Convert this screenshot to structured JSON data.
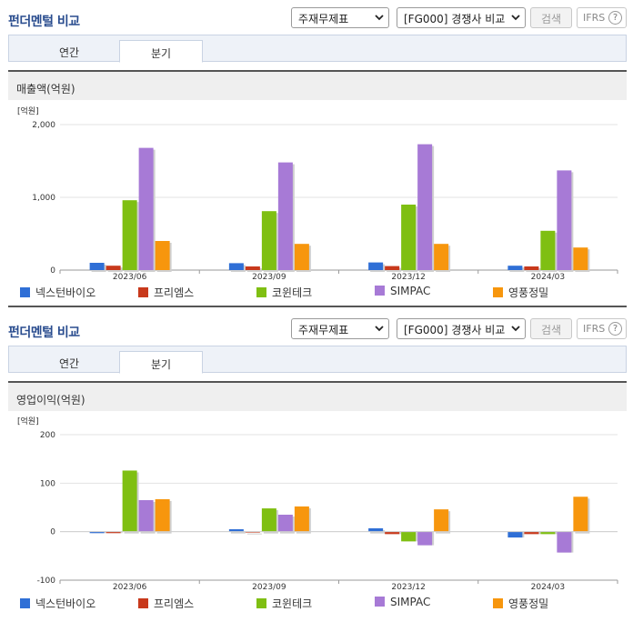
{
  "panels": [
    {
      "title": "펀더멘털 비교",
      "statement_select": "주재무제표",
      "compare_select": "[FG000] 경쟁사 비교",
      "search_button": "검색",
      "ifrs_label": "IFRS",
      "help_label": "?",
      "tabs": [
        "연간",
        "분기"
      ],
      "active_tab": 1,
      "section_title": "매출액(억원)"
    },
    {
      "title": "펀더멘털 비교",
      "statement_select": "주재무제표",
      "compare_select": "[FG000] 경쟁사 비교",
      "search_button": "검색",
      "ifrs_label": "IFRS",
      "help_label": "?",
      "tabs": [
        "연간",
        "분기"
      ],
      "active_tab": 1,
      "section_title": "영업이익(억원)"
    }
  ],
  "chart_data": [
    {
      "type": "bar",
      "unit_label": "[억원]",
      "categories": [
        "2023/06",
        "2023/09",
        "2023/12",
        "2024/03"
      ],
      "yticks": [
        "2,000",
        "1,000",
        "0"
      ],
      "ytick_values": [
        2000,
        1000,
        0
      ],
      "ylim": [
        0,
        2000
      ],
      "series": [
        {
          "name": "넥스턴바이오",
          "color": "#2f6fd6",
          "values": [
            100,
            95,
            105,
            60
          ]
        },
        {
          "name": "프리엠스",
          "color": "#c8391c",
          "values": [
            60,
            50,
            55,
            50
          ]
        },
        {
          "name": "코윈테크",
          "color": "#7fbf12",
          "values": [
            960,
            810,
            900,
            540
          ]
        },
        {
          "name": "SIMPAC",
          "color": "#a77ad6",
          "values": [
            1680,
            1480,
            1730,
            1370
          ]
        },
        {
          "name": "영풍정밀",
          "color": "#f7960d",
          "values": [
            400,
            360,
            360,
            310
          ]
        }
      ]
    },
    {
      "type": "bar",
      "unit_label": "[억원]",
      "categories": [
        "2023/06",
        "2023/09",
        "2023/12",
        "2024/03"
      ],
      "yticks": [
        "200",
        "100",
        "0",
        "-100"
      ],
      "ytick_values": [
        200,
        100,
        0,
        -100
      ],
      "ylim": [
        -100,
        200
      ],
      "series": [
        {
          "name": "넥스턴바이오",
          "color": "#2f6fd6",
          "values": [
            -3,
            5,
            7,
            -12
          ]
        },
        {
          "name": "프리엠스",
          "color": "#c8391c",
          "values": [
            -3,
            0,
            -5,
            -5
          ]
        },
        {
          "name": "코윈테크",
          "color": "#7fbf12",
          "values": [
            126,
            48,
            -20,
            -5
          ]
        },
        {
          "name": "SIMPAC",
          "color": "#a77ad6",
          "values": [
            65,
            35,
            -28,
            -43
          ]
        },
        {
          "name": "영풍정밀",
          "color": "#f7960d",
          "values": [
            67,
            52,
            46,
            72
          ]
        }
      ]
    }
  ]
}
